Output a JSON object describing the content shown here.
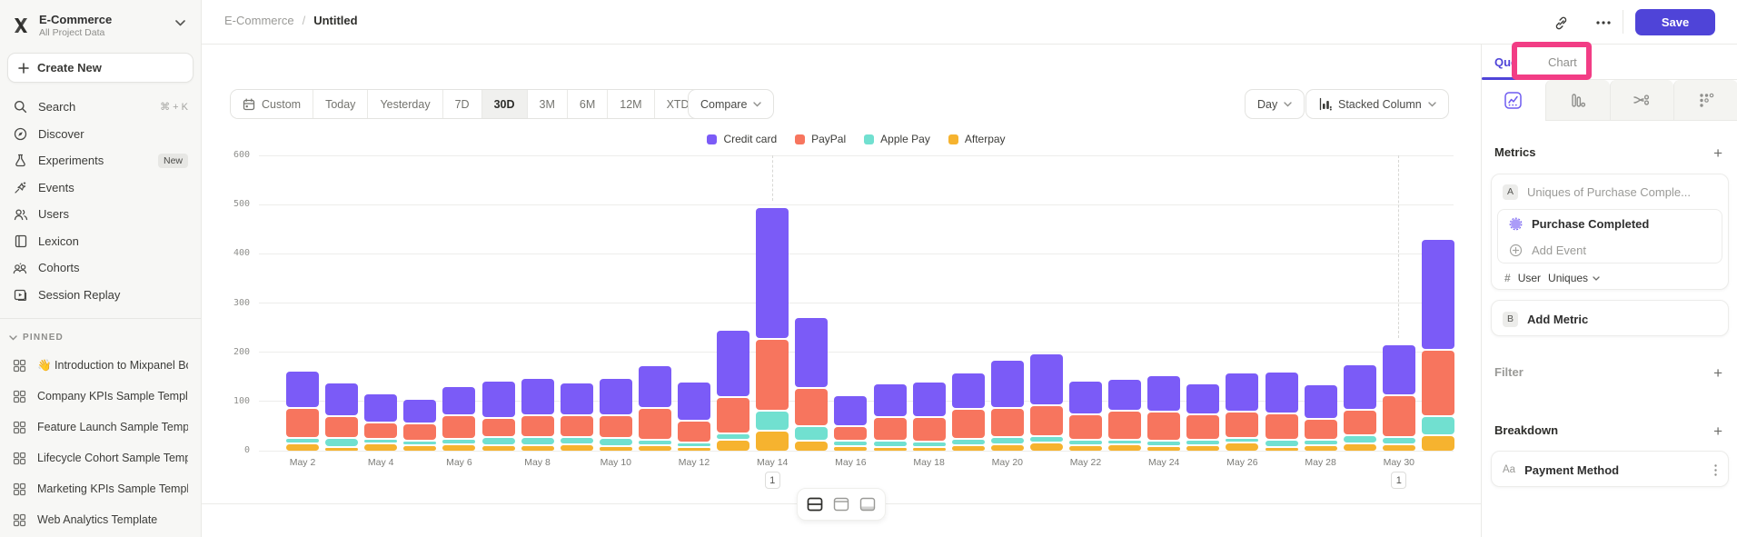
{
  "colors": {
    "accent": "#4f44d8",
    "annotation_pink": "#f23d85",
    "credit_card": "#7b5bf7",
    "paypal": "#f7755e",
    "apple_pay": "#71e0d0",
    "afterpay": "#f6b32f"
  },
  "sidebar": {
    "project": {
      "name": "E-Commerce",
      "subtitle": "All Project Data"
    },
    "create_new": "Create New",
    "nav": [
      {
        "icon": "search-icon",
        "label": "Search",
        "shortcut": "⌘ + K"
      },
      {
        "icon": "discover-icon",
        "label": "Discover"
      },
      {
        "icon": "experiments-icon",
        "label": "Experiments",
        "badge": "New"
      },
      {
        "icon": "events-icon",
        "label": "Events"
      },
      {
        "icon": "users-icon",
        "label": "Users"
      },
      {
        "icon": "lexicon-icon",
        "label": "Lexicon"
      },
      {
        "icon": "cohorts-icon",
        "label": "Cohorts"
      },
      {
        "icon": "session-replay-icon",
        "label": "Session Replay"
      }
    ],
    "pinned_header": "PINNED",
    "pinned": [
      {
        "icon": "board-icon",
        "emoji": "👋",
        "label": "Introduction to Mixpanel Bo"
      },
      {
        "icon": "board-icon",
        "emoji": "",
        "label": "Company KPIs Sample Templat"
      },
      {
        "icon": "board-icon",
        "emoji": "",
        "label": "Feature Launch Sample Templa"
      },
      {
        "icon": "board-icon",
        "emoji": "",
        "label": "Lifecycle Cohort Sample Temp"
      },
      {
        "icon": "board-icon",
        "emoji": "",
        "label": "Marketing KPIs Sample Templat"
      },
      {
        "icon": "board-icon",
        "emoji": "",
        "label": "Web Analytics Template"
      }
    ]
  },
  "topbar": {
    "breadcrumb_root": "E-Commerce",
    "breadcrumb_separator": "/",
    "breadcrumb_current": "Untitled",
    "save_label": "Save"
  },
  "toolbar": {
    "ranges": [
      "Custom",
      "Today",
      "Yesterday",
      "7D",
      "30D",
      "3M",
      "6M",
      "12M",
      "XTD"
    ],
    "selected_range": "30D",
    "compare_label": "Compare",
    "granularity_label": "Day",
    "chart_type_label": "Stacked Column"
  },
  "panel": {
    "tab_query": "Query",
    "tab_chart": "Chart",
    "view_tabs": [
      "insights",
      "funnels",
      "flows",
      "retention"
    ],
    "metrics_title": "Metrics",
    "row_a_badge": "A",
    "row_a_text": "Uniques of Purchase Comple...",
    "event_name": "Purchase Completed",
    "add_event_label": "Add Event",
    "measure_hash": "#",
    "measure_entity": "User",
    "measure_value": "Uniques",
    "row_b_badge": "B",
    "add_metric_label": "Add Metric",
    "filter_title": "Filter",
    "breakdown_title": "Breakdown",
    "breakdown_badge": "Aa",
    "breakdown_item": "Payment Method"
  },
  "chart_data": {
    "type": "bar",
    "stacked": true,
    "title": "",
    "xlabel": "",
    "ylabel": "",
    "ylim": [
      0,
      600
    ],
    "yticks": [
      0,
      100,
      200,
      300,
      400,
      500,
      600
    ],
    "grid": true,
    "legend_position": "top-center",
    "xtick_every": 2,
    "categories": [
      "May 2",
      "May 3",
      "May 4",
      "May 5",
      "May 6",
      "May 7",
      "May 8",
      "May 9",
      "May 10",
      "May 11",
      "May 12",
      "May 13",
      "May 14",
      "May 15",
      "May 16",
      "May 17",
      "May 18",
      "May 19",
      "May 20",
      "May 21",
      "May 22",
      "May 23",
      "May 24",
      "May 25",
      "May 26",
      "May 27",
      "May 28",
      "May 29",
      "May 30",
      "May 31"
    ],
    "series": [
      {
        "name": "Credit card",
        "color": "#7b5bf7",
        "values": [
          72,
          64,
          55,
          46,
          56,
          72,
          71,
          62,
          71,
          84,
          76,
          133,
          263,
          141,
          59,
          63,
          68,
          70,
          95,
          100,
          65,
          61,
          70,
          58,
          76,
          81,
          66,
          90,
          100,
          221
        ]
      },
      {
        "name": "PayPal",
        "color": "#f7755e",
        "values": [
          58,
          40,
          30,
          31,
          45,
          35,
          40,
          40,
          43,
          60,
          40,
          71,
          142,
          73,
          25,
          46,
          45,
          58,
          55,
          60,
          48,
          55,
          55,
          48,
          50,
          50,
          38,
          48,
          80,
          132
        ]
      },
      {
        "name": "Apple Pay",
        "color": "#71e0d0",
        "values": [
          7,
          15,
          5,
          6,
          7,
          12,
          14,
          12,
          13,
          8,
          6,
          8,
          38,
          27,
          7,
          8,
          8,
          9,
          11,
          10,
          6,
          5,
          7,
          8,
          6,
          10,
          8,
          12,
          12,
          35
        ]
      },
      {
        "name": "Afterpay",
        "color": "#f6b32f",
        "values": [
          13,
          6,
          13,
          9,
          11,
          10,
          9,
          11,
          7,
          9,
          4,
          21,
          38,
          18,
          8,
          6,
          5,
          9,
          11,
          14,
          10,
          11,
          8,
          9,
          14,
          6,
          9,
          13,
          11,
          29
        ]
      }
    ],
    "annotations": [
      {
        "category_index": 12,
        "label": "1"
      },
      {
        "category_index": 28,
        "label": "1"
      }
    ]
  }
}
